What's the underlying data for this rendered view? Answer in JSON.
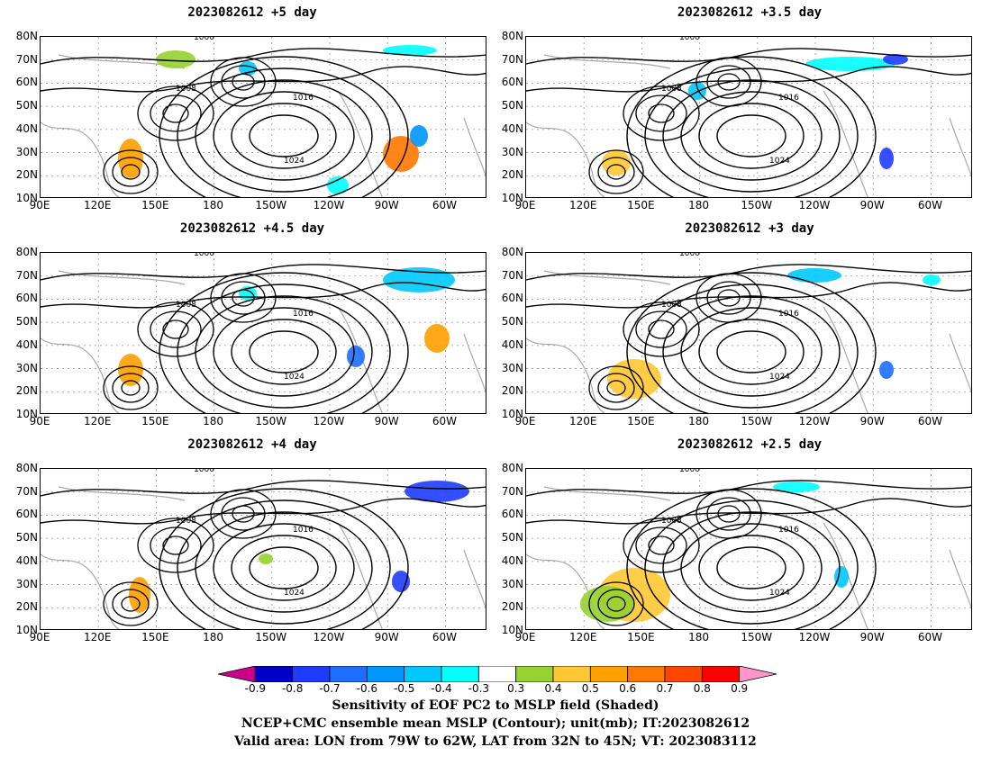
{
  "panels": [
    {
      "id": "p1",
      "title": "2023082612 +5 day"
    },
    {
      "id": "p2",
      "title": "2023082612 +3.5 day"
    },
    {
      "id": "p3",
      "title": "2023082612 +4.5 day"
    },
    {
      "id": "p4",
      "title": "2023082612 +3 day"
    },
    {
      "id": "p5",
      "title": "2023082612 +4 day"
    },
    {
      "id": "p6",
      "title": "2023082612 +2.5 day"
    }
  ],
  "axes": {
    "lat_labels": [
      "80N",
      "70N",
      "60N",
      "50N",
      "40N",
      "30N",
      "20N",
      "10N"
    ],
    "lon_labels": [
      "90E",
      "120E",
      "150E",
      "180",
      "150W",
      "120W",
      "90W",
      "60W"
    ]
  },
  "contour_labels": [
    "1000",
    "1008",
    "1016",
    "1024"
  ],
  "colorbar": {
    "labels": [
      "-0.9",
      "-0.8",
      "-0.7",
      "-0.6",
      "-0.5",
      "-0.4",
      "-0.3",
      "0.3",
      "0.4",
      "0.5",
      "0.6",
      "0.7",
      "0.8",
      "0.9"
    ],
    "colors": [
      "#c8008c",
      "#0000c8",
      "#1e3cff",
      "#1e6eff",
      "#0096ff",
      "#00c8ff",
      "#00ffff",
      "#ffffff",
      "#96d232",
      "#ffc832",
      "#ffa000",
      "#ff7800",
      "#ff4600",
      "#ff0000",
      "#ff96c8"
    ]
  },
  "footer": {
    "line1": "Sensitivity of EOF PC2 to MSLP field (Shaded)",
    "line2": "NCEP+CMC ensemble mean MSLP (Contour); unit(mb); IT:2023082612",
    "line3": "Valid area: LON from 79W to 62W, LAT from 32N to 45N; VT: 2023083112"
  }
}
